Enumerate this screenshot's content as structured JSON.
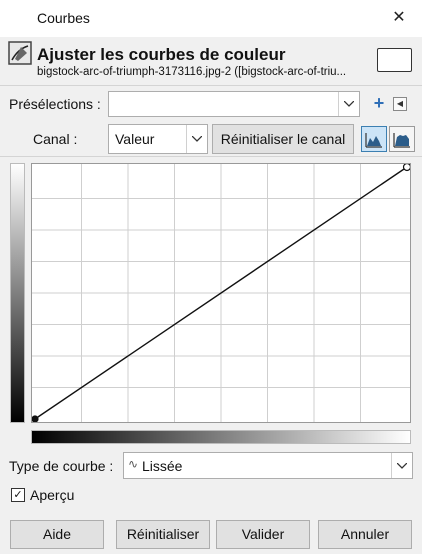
{
  "window": {
    "title": "Courbes",
    "close_glyph": "✕"
  },
  "header": {
    "icon": "curves-tool-icon",
    "title": "Ajuster les courbes de couleur",
    "subtitle": "bigstock-arc-of-triumph-3173116.jpg-2 ([bigstock-arc-of-triu..."
  },
  "presets": {
    "label": "Présélections :",
    "value": "",
    "add_icon": "plus-icon",
    "menu_icon": "triangle-left-icon"
  },
  "channel": {
    "label": "Canal :",
    "value": "Valeur",
    "reset_label": "Réinitialiser le canal",
    "scale_buttons": [
      "linear-histogram-icon",
      "logarithmic-histogram-icon"
    ]
  },
  "curve": {
    "points": [
      [
        0,
        0
      ],
      [
        255,
        255
      ]
    ],
    "grid_divisions": 8
  },
  "curve_type": {
    "label": "Type de courbe :",
    "value": "Lissée",
    "icon": "smooth-curve-icon"
  },
  "preview": {
    "label": "Aperçu",
    "checked": true,
    "check_glyph": "✓"
  },
  "buttons": {
    "help": "Aide",
    "reset": "Réinitialiser",
    "ok": "Valider",
    "cancel": "Annuler"
  }
}
